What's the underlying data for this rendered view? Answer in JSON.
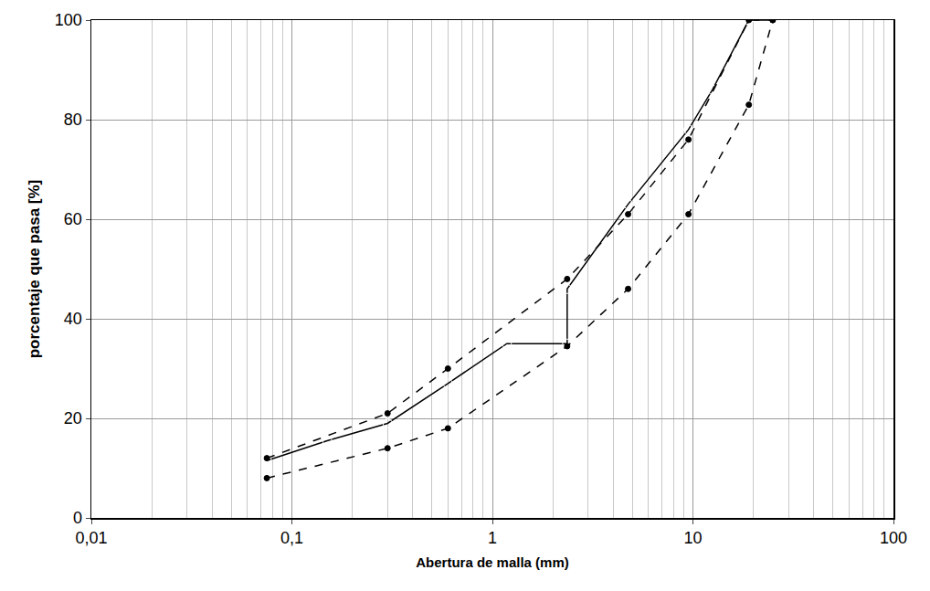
{
  "chart_data": {
    "type": "line",
    "x_label": "Abertura de malla (mm)",
    "y_label": "porcentaje que pasa [%]",
    "log": "x",
    "grid": true,
    "xlim": [
      0.01,
      100
    ],
    "xticks": [
      {
        "value": 0.01,
        "label": "0,01"
      },
      {
        "value": 0.1,
        "label": "0,1"
      },
      1,
      10,
      100
    ],
    "ylim": [
      0,
      100
    ],
    "yticks": [
      0,
      20,
      40,
      60,
      80,
      100
    ],
    "series": [
      {
        "color": "#000000",
        "line_style": "solid",
        "marker": "circle-open",
        "x": [
          0.075,
          0.15,
          0.3,
          0.6,
          1.18,
          2.36,
          2.36,
          4.75,
          9.5,
          12.5,
          19,
          25
        ],
        "values": [
          11.5,
          15.5,
          19,
          27,
          35,
          35,
          46,
          63,
          78,
          86,
          100,
          100
        ]
      },
      {
        "color": "#000000",
        "line_style": "dash",
        "marker": "circle",
        "x": [
          0.075,
          0.3,
          0.6,
          2.36,
          4.75,
          9.5,
          19,
          25
        ],
        "values": [
          12,
          21,
          30,
          48,
          61,
          76,
          100,
          100
        ]
      },
      {
        "color": "#000000",
        "line_style": "dash",
        "marker": "circle",
        "x": [
          0.075,
          0.3,
          0.6,
          2.36,
          4.75,
          9.5,
          19,
          25
        ],
        "values": [
          8,
          14,
          18,
          34.5,
          46,
          61,
          83,
          100
        ]
      }
    ]
  }
}
